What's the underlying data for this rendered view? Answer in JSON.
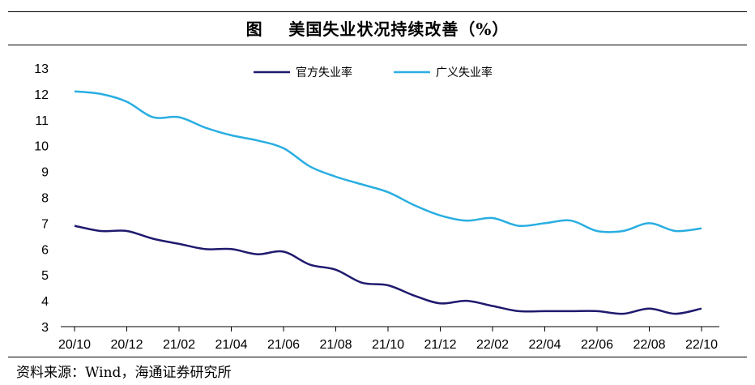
{
  "header": {
    "title": "图    美国失业状况持续改善（%）"
  },
  "footer": {
    "source": "资料来源：Wind，海通证券研究所"
  },
  "chart_data": {
    "type": "line",
    "title": "美国失业状况持续改善（%）",
    "xlabel": "",
    "ylabel": "",
    "ylim": [
      3,
      13
    ],
    "yticks": [
      "3",
      "4",
      "5",
      "6",
      "7",
      "8",
      "9",
      "10",
      "11",
      "12",
      "13"
    ],
    "xtick_labels": [
      "20/10",
      "20/12",
      "21/02",
      "21/04",
      "21/06",
      "21/08",
      "21/10",
      "21/12",
      "22/02",
      "22/04",
      "22/06",
      "22/08",
      "22/10"
    ],
    "categories": [
      "20/10",
      "20/11",
      "20/12",
      "21/01",
      "21/02",
      "21/03",
      "21/04",
      "21/05",
      "21/06",
      "21/07",
      "21/08",
      "21/09",
      "21/10",
      "21/11",
      "21/12",
      "22/01",
      "22/02",
      "22/03",
      "22/04",
      "22/05",
      "22/06",
      "22/07",
      "22/08",
      "22/09",
      "22/10"
    ],
    "legend_position": "top-center",
    "series": [
      {
        "name": "官方失业率",
        "color": "#1f1a6e",
        "values": [
          6.9,
          6.7,
          6.7,
          6.4,
          6.2,
          6.0,
          6.0,
          5.8,
          5.9,
          5.4,
          5.2,
          4.7,
          4.6,
          4.2,
          3.9,
          4.0,
          3.8,
          3.6,
          3.6,
          3.6,
          3.6,
          3.5,
          3.7,
          3.5,
          3.7
        ]
      },
      {
        "name": "广义失业率",
        "color": "#29aee1",
        "values": [
          12.1,
          12.0,
          11.7,
          11.1,
          11.1,
          10.7,
          10.4,
          10.2,
          9.9,
          9.2,
          8.8,
          8.5,
          8.2,
          7.7,
          7.3,
          7.1,
          7.2,
          6.9,
          7.0,
          7.1,
          6.7,
          6.7,
          7.0,
          6.7,
          6.8
        ]
      }
    ]
  }
}
